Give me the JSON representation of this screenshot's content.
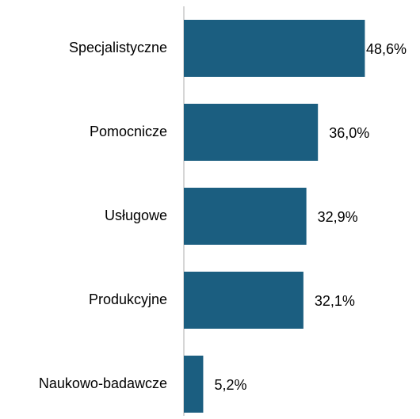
{
  "chart_data": {
    "type": "hbar",
    "categories": [
      "Specjalistyczne",
      "Pomocnicze",
      "Usługowe",
      "Produkcyjne",
      "Naukowo-badawcze"
    ],
    "values": [
      48.6,
      36.0,
      32.9,
      32.1,
      5.2
    ],
    "value_labels": [
      "48,6%",
      "36,0%",
      "32,9%",
      "32,1%",
      "5,2%"
    ],
    "color": "#1b5e80",
    "xlim": [
      0,
      50
    ]
  }
}
